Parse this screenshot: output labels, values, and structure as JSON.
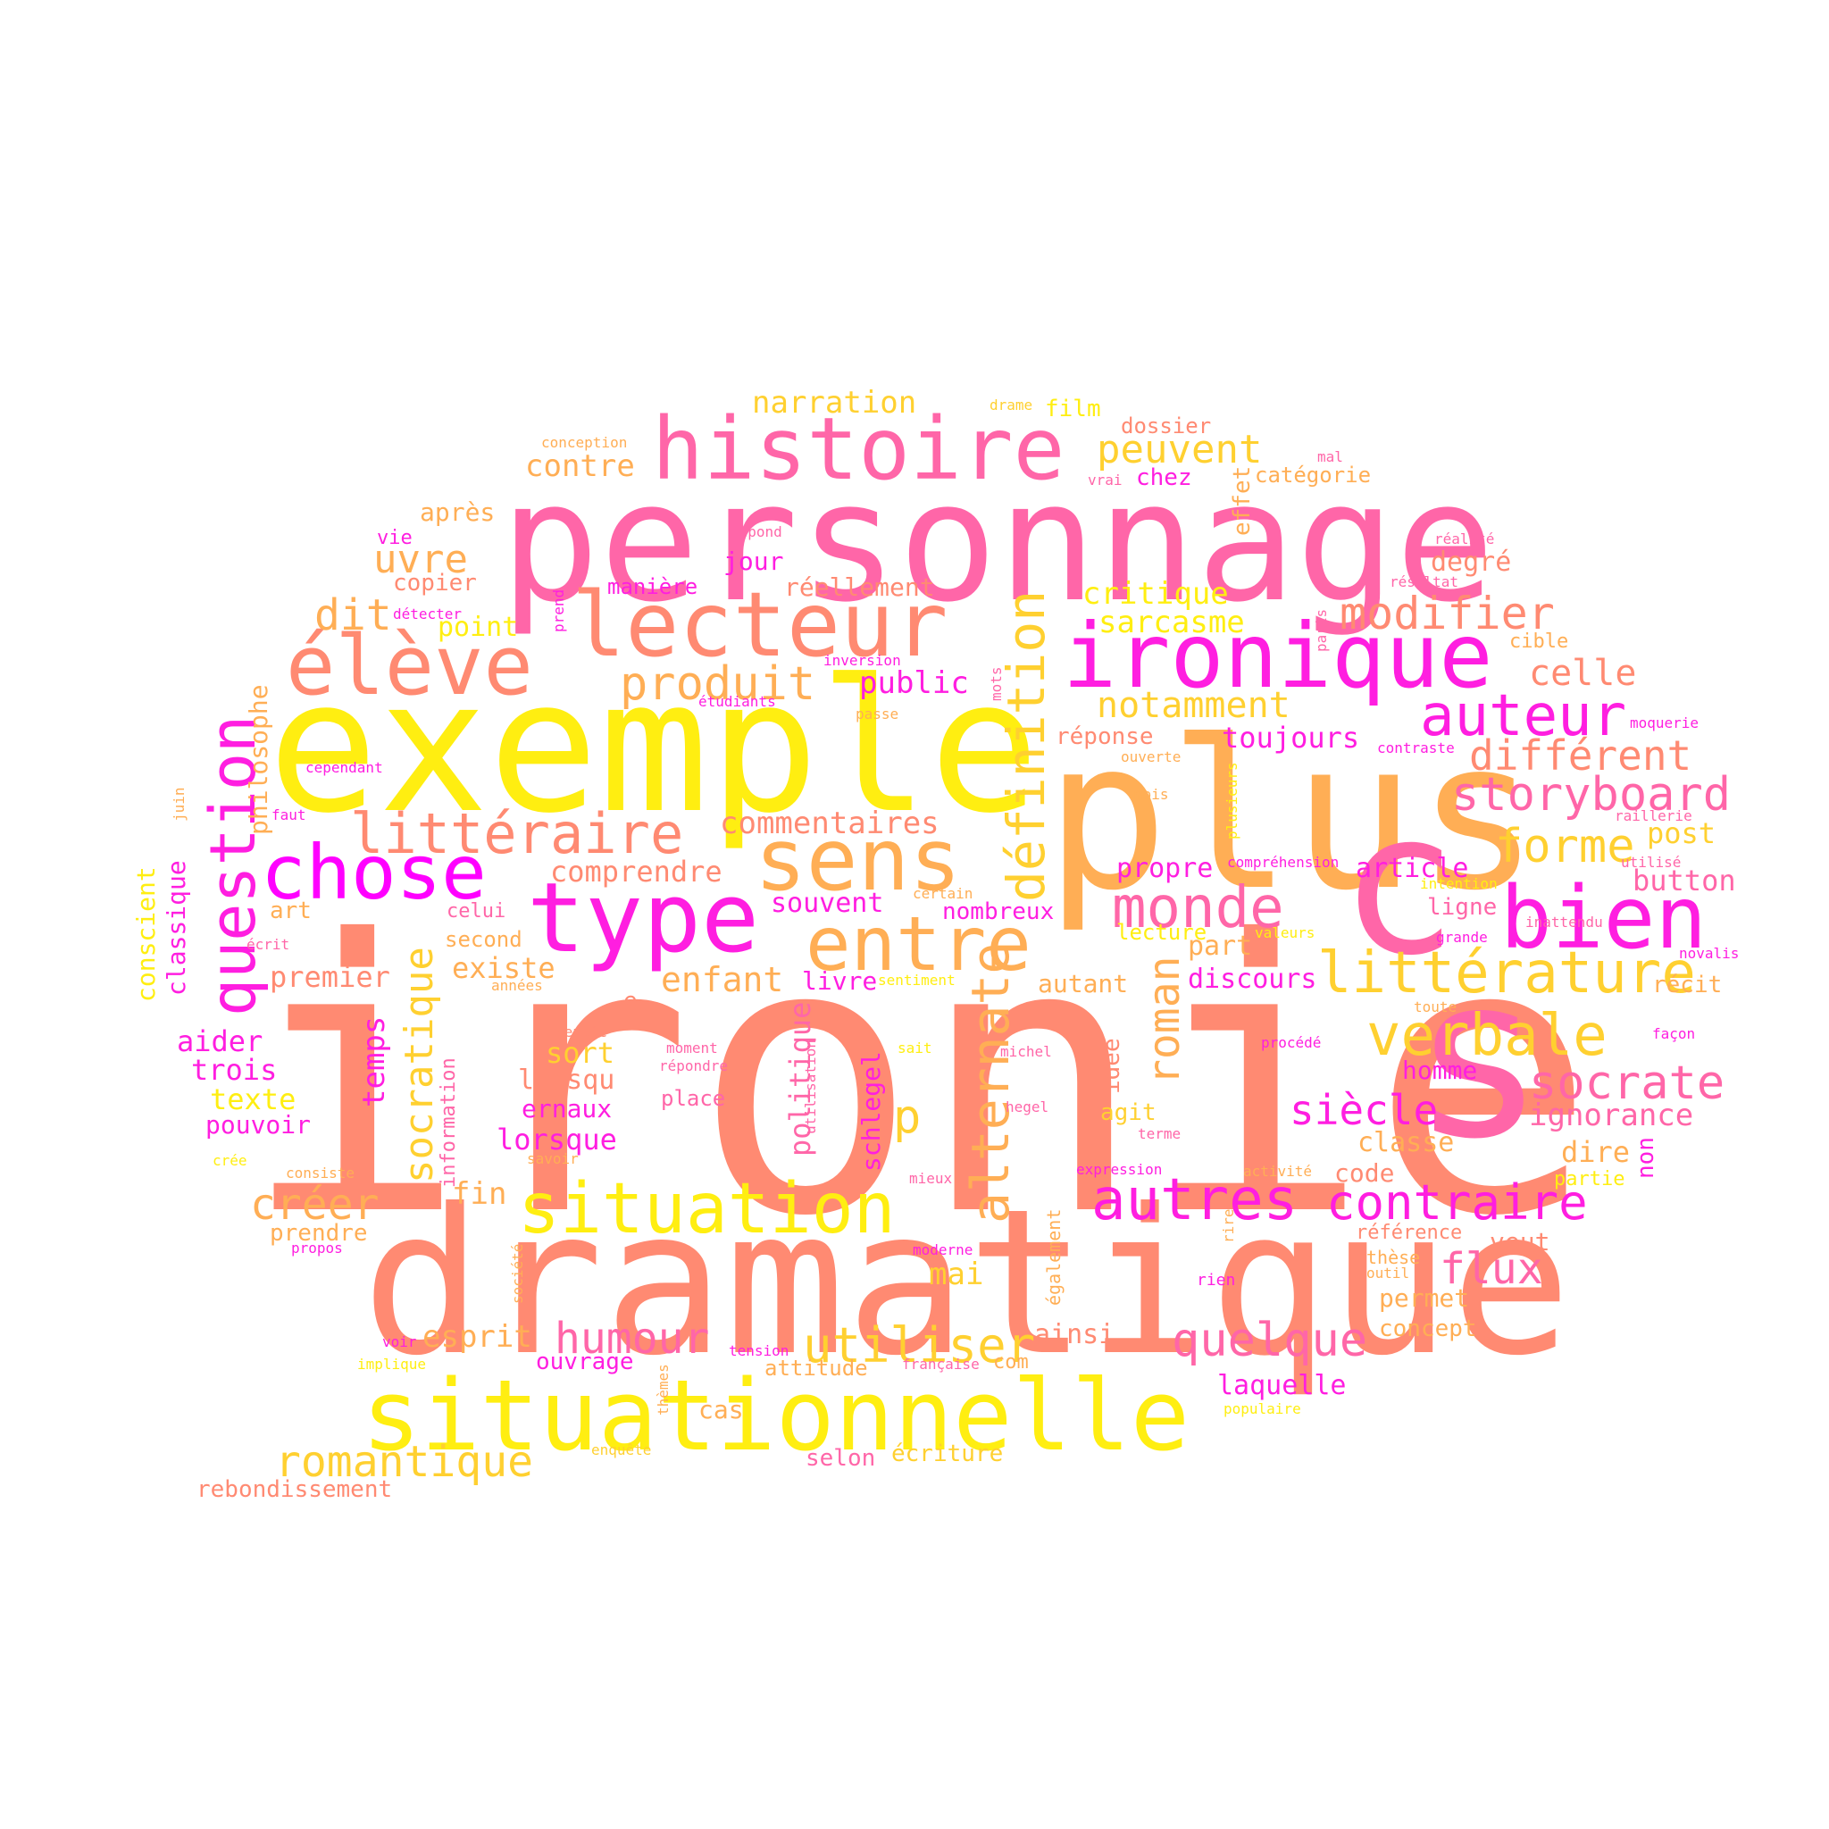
{
  "colors": {
    "salmon": "#ff8a72",
    "pink": "#ff66a8",
    "magenta": "#ff1ee0",
    "fuchsia": "#ff00ff",
    "yellow": "#ffee11",
    "gold": "#ffd030",
    "orange": "#ffae55"
  },
  "words": {
    "ironie": "ironie",
    "dramatique": "dramatique",
    "exemple": "exemple",
    "personnage": "personnage",
    "plus": "plus",
    "situationnelle": "situationnelle",
    "s": "s",
    "c": "c",
    "historie": "histoire",
    "lecteur": "lecteur",
    "ironique": "ironique",
    "eleve": "élève",
    "chose": "chose",
    "type": "type",
    "sens": "sens",
    "bien": "bien",
    "entre": "entre",
    "litterature": "littérature",
    "verbale": "verbale",
    "auteur": "auteur",
    "situation": "situation",
    "monde": "monde",
    "storyboard": "storyboard",
    "question": "question",
    "definition": "définition",
    "socratique": "socratique",
    "alternate": "alternate",
    "litteraire": "littéraire",
    "produit": "produit",
    "modifier": "modifier",
    "different": "différent",
    "autres": "autres",
    "contraire": "contraire",
    "socrate": "socrate",
    "romantique": "romantique",
    "quelque": "quelque",
    "humour": "humour",
    "utiliser": "utiliser",
    "forme": "forme",
    "celle": "celle",
    "notamment": "notamment",
    "peuvent": "peuvent",
    "narration": "narration",
    "uvre": "uvre",
    "dit": "dit",
    "creer": "créer",
    "siecle": "siècle",
    "flux": "flux",
    "commentaires": "commentaires",
    "comprendre": "comprendre",
    "critique": "critique",
    "sarcasme": "sarcasme",
    "ignorance": "ignorance",
    "roman": "roman",
    "p": "p",
    "enfant": "enfant",
    "temps": "temps",
    "politique": "politique",
    "philosophe": "philosophe",
    "classique": "classique",
    "conscient": "conscient",
    "contre": "contre",
    "apres": "après",
    "public": "public",
    "toujours": "toujours",
    "reponse": "réponse",
    "souvent": "souvent",
    "propre": "propre",
    "article": "article",
    "button": "button",
    "post": "post",
    "existe": "existe",
    "premier": "premier",
    "aider": "aider",
    "trois": "trois",
    "texte": "texte",
    "pouvoir": "pouvoir",
    "lorsqu": "lorsqu",
    "ernaux": "ernaux",
    "lorsque": "lorsque",
    "sort": "sort",
    "esprit": "esprit",
    "fin": "fin",
    "prendre": "prendre",
    "selon": "selon",
    "ecriture": "écriture",
    "rebondissement": "rebondissement",
    "laquelle": "laquelle",
    "concept": "concept",
    "permet": "permet",
    "veut": "veut",
    "dire": "dire",
    "classe": "classe",
    "code": "code",
    "homme": "homme",
    "recit": "récit",
    "ligne": "ligne",
    "degre": "degré",
    "cible": "cible",
    "discours": "discours",
    "livre": "livre",
    "autant": "autant",
    "part": "part",
    "agit": "agit",
    "idee": "idée",
    "schlegel": "schlegel",
    "mai": "mai",
    "ainsi": "ainsi",
    "attitude": "attitude",
    "ouvrage": "ouvrage",
    "cas": "cas",
    "com": "com",
    "nombreux": "nombreux",
    "lecture": "lecture",
    "place": "place",
    "film": "film",
    "dossier": "dossier",
    "chez": "chez",
    "categorie": "catégorie",
    "reellement": "réellement",
    "jour": "jour",
    "maniere": "manière",
    "copier": "copier",
    "vie": "vie",
    "point": "point",
    "effet": "effet",
    "celui": "celui",
    "second": "second",
    "art": "art",
    "e": "e",
    "non": "non",
    "partie": "partie",
    "reference": "référence",
    "these": "thèse",
    "rien": "rien",
    "sm_drame": "drame",
    "sm_conception": "conception",
    "sm_mal": "mal",
    "sm_vrai": "vrai",
    "sm_repond": "répond",
    "sm_realite": "réalité",
    "sm_resultat": "résultat",
    "sm_detecter": "détecter",
    "sm_prend": "prend",
    "sm_paris": "paris",
    "sm_inversion": "inversion",
    "sm_mots": "mots",
    "sm_etudiants": "étudiants",
    "sm_passe": "passe",
    "sm_moquerie": "moquerie",
    "sm_contraste": "contraste",
    "sm_ouverte": "ouverte",
    "sm_plusieurs": "plusieurs",
    "sm_cependant": "cependant",
    "sm_juin": "juin",
    "sm_faut": "faut",
    "sm_mois": "mois",
    "sm_raillerie": "raillerie",
    "sm_comprehension": "compréhension",
    "sm_utilise": "utilisé",
    "sm_certain": "certain",
    "sm_intention": "intention",
    "sm_ecrit": "écrit",
    "sm_valeurs": "valeurs",
    "sm_grande": "grande",
    "sm_novalis": "novalis",
    "sm_sentiment": "sentiment",
    "sm_annees": "années",
    "sm_inattendu": "inattendu",
    "sm_toute": "toute",
    "sm_pensee": "pensée",
    "sm_moment": "moment",
    "sm_sait": "sait",
    "sm_michel": "michel",
    "sm_repondre": "répondre",
    "sm_utilisation": "utilisation",
    "sm_procede": "procédé",
    "sm_facon": "façon",
    "sm_information": "information",
    "sm_hegel": "hegel",
    "sm_terme": "terme",
    "sm_cree": "crée",
    "sm_consiste": "consiste",
    "sm_savoir": "savoir",
    "sm_expression": "expression",
    "sm_activite": "activité",
    "sm_mieux": "mieux",
    "sm_propos": "propos",
    "sm_moderne": "moderne",
    "sm_societe": "société",
    "sm_egalement": "également",
    "sm_rire": "rire",
    "sm_outil": "outil",
    "sm_voir": "voir",
    "sm_tension": "tension",
    "sm_implique": "implique",
    "sm_themes": "thèmes",
    "sm_francaise": "française",
    "sm_populaire": "populaire",
    "sm_enquete": "enquête"
  }
}
